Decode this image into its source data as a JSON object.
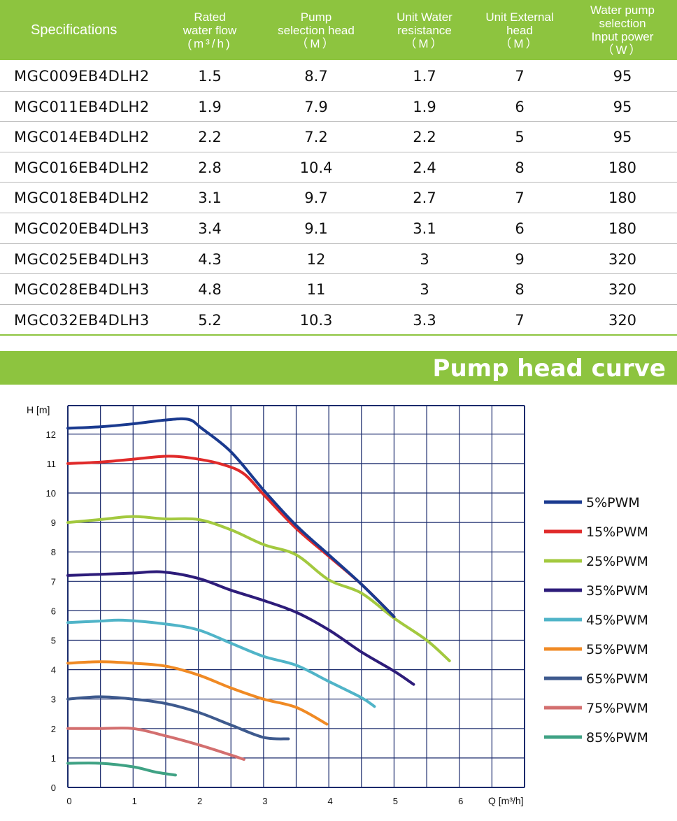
{
  "table": {
    "headers": [
      {
        "lines": [
          "Specifications"
        ]
      },
      {
        "lines": [
          "Rated",
          "water flow",
          "(m³/h)"
        ]
      },
      {
        "lines": [
          "Pump",
          "selection head",
          "（M）"
        ]
      },
      {
        "lines": [
          "Unit Water",
          "resistance",
          "（M）"
        ]
      },
      {
        "lines": [
          "Unit External",
          "head",
          "（M）"
        ]
      },
      {
        "lines": [
          "Water pump",
          "selection",
          "Input power",
          "（W）"
        ]
      }
    ],
    "rows": [
      [
        "MGC009EB4DLH2",
        "1.5",
        "8.7",
        "1.7",
        "7",
        "95"
      ],
      [
        "MGC011EB4DLH2",
        "1.9",
        "7.9",
        "1.9",
        "6",
        "95"
      ],
      [
        "MGC014EB4DLH2",
        "2.2",
        "7.2",
        "2.2",
        "5",
        "95"
      ],
      [
        "MGC016EB4DLH2",
        "2.8",
        "10.4",
        "2.4",
        "8",
        "180"
      ],
      [
        "MGC018EB4DLH2",
        "3.1",
        "9.7",
        "2.7",
        "7",
        "180"
      ],
      [
        "MGC020EB4DLH3",
        "3.4",
        "9.1",
        "3.1",
        "6",
        "180"
      ],
      [
        "MGC025EB4DLH3",
        "4.3",
        "12",
        "3",
        "9",
        "320"
      ],
      [
        "MGC028EB4DLH3",
        "4.8",
        "11",
        "3",
        "8",
        "320"
      ],
      [
        "MGC032EB4DLH3",
        "5.2",
        "10.3",
        "3.3",
        "7",
        "320"
      ]
    ]
  },
  "banner": {
    "title": "Pump head curve"
  },
  "colors": {
    "accent": "#8dc43f",
    "grid": "#1a2a6c"
  },
  "chart_data": {
    "type": "line",
    "title": "Pump head curve",
    "xlabel": "Q [m³/h]",
    "ylabel": "H [m]",
    "xlim": [
      0,
      7
    ],
    "ylim": [
      0,
      12.5
    ],
    "x_ticks": [
      "0",
      "1",
      "2",
      "3",
      "4",
      "5",
      "6"
    ],
    "y_ticks": [
      "0",
      "1",
      "2",
      "3",
      "4",
      "5",
      "6",
      "7",
      "8",
      "9",
      "10",
      "11",
      "12"
    ],
    "grid": true,
    "legend_position": "right",
    "series": [
      {
        "name": "5%PWM",
        "color": "#1a3a8f",
        "points": [
          [
            0,
            12.2
          ],
          [
            0.5,
            12.25
          ],
          [
            1,
            12.35
          ],
          [
            1.5,
            12.48
          ],
          [
            1.85,
            12.5
          ],
          [
            2.05,
            12.2
          ],
          [
            2.5,
            11.4
          ],
          [
            3,
            10.1
          ],
          [
            3.5,
            8.9
          ],
          [
            4,
            7.9
          ],
          [
            4.5,
            6.9
          ],
          [
            5,
            5.8
          ]
        ]
      },
      {
        "name": "15%PWM",
        "color": "#e02a2a",
        "points": [
          [
            0,
            11.0
          ],
          [
            0.5,
            11.05
          ],
          [
            1,
            11.15
          ],
          [
            1.55,
            11.25
          ],
          [
            2,
            11.15
          ],
          [
            2.4,
            10.95
          ],
          [
            2.7,
            10.65
          ],
          [
            3,
            9.95
          ],
          [
            3.5,
            8.8
          ],
          [
            4,
            7.85
          ],
          [
            4.5,
            6.9
          ],
          [
            5,
            5.8
          ]
        ]
      },
      {
        "name": "25%PWM",
        "color": "#a3c93f",
        "points": [
          [
            0,
            9.0
          ],
          [
            0.5,
            9.1
          ],
          [
            1,
            9.2
          ],
          [
            1.5,
            9.12
          ],
          [
            2,
            9.1
          ],
          [
            2.5,
            8.75
          ],
          [
            3,
            8.25
          ],
          [
            3.5,
            7.9
          ],
          [
            4,
            7.05
          ],
          [
            4.5,
            6.6
          ],
          [
            5,
            5.75
          ],
          [
            5.5,
            5.0
          ],
          [
            5.85,
            4.3
          ]
        ]
      },
      {
        "name": "35%PWM",
        "color": "#2d1c7a",
        "points": [
          [
            0,
            7.2
          ],
          [
            0.5,
            7.24
          ],
          [
            1,
            7.28
          ],
          [
            1.45,
            7.32
          ],
          [
            2,
            7.1
          ],
          [
            2.5,
            6.7
          ],
          [
            3,
            6.35
          ],
          [
            3.5,
            5.95
          ],
          [
            4,
            5.35
          ],
          [
            4.5,
            4.6
          ],
          [
            5,
            3.95
          ],
          [
            5.3,
            3.5
          ]
        ]
      },
      {
        "name": "45%PWM",
        "color": "#50b4c8",
        "points": [
          [
            0,
            5.6
          ],
          [
            0.5,
            5.65
          ],
          [
            0.85,
            5.68
          ],
          [
            1.5,
            5.55
          ],
          [
            2,
            5.35
          ],
          [
            2.5,
            4.9
          ],
          [
            3,
            4.45
          ],
          [
            3.5,
            4.15
          ],
          [
            4,
            3.6
          ],
          [
            4.5,
            3.05
          ],
          [
            4.7,
            2.75
          ]
        ]
      },
      {
        "name": "55%PWM",
        "color": "#f08a24",
        "points": [
          [
            0,
            4.22
          ],
          [
            0.5,
            4.27
          ],
          [
            1,
            4.22
          ],
          [
            1.5,
            4.12
          ],
          [
            2,
            3.82
          ],
          [
            2.5,
            3.38
          ],
          [
            3,
            3.0
          ],
          [
            3.5,
            2.72
          ],
          [
            3.97,
            2.15
          ]
        ]
      },
      {
        "name": "65%PWM",
        "color": "#3e5a8e",
        "points": [
          [
            0,
            3.0
          ],
          [
            0.5,
            3.08
          ],
          [
            1,
            3.0
          ],
          [
            1.5,
            2.85
          ],
          [
            2,
            2.55
          ],
          [
            2.5,
            2.12
          ],
          [
            3,
            1.7
          ],
          [
            3.38,
            1.65
          ]
        ]
      },
      {
        "name": "75%PWM",
        "color": "#d36f6f",
        "points": [
          [
            0,
            2.0
          ],
          [
            0.5,
            2.0
          ],
          [
            1,
            2.0
          ],
          [
            1.5,
            1.75
          ],
          [
            2,
            1.45
          ],
          [
            2.5,
            1.1
          ],
          [
            2.7,
            0.95
          ]
        ]
      },
      {
        "name": "85%PWM",
        "color": "#3fa284",
        "points": [
          [
            0,
            0.82
          ],
          [
            0.5,
            0.82
          ],
          [
            1,
            0.7
          ],
          [
            1.35,
            0.52
          ],
          [
            1.65,
            0.42
          ]
        ]
      }
    ]
  }
}
